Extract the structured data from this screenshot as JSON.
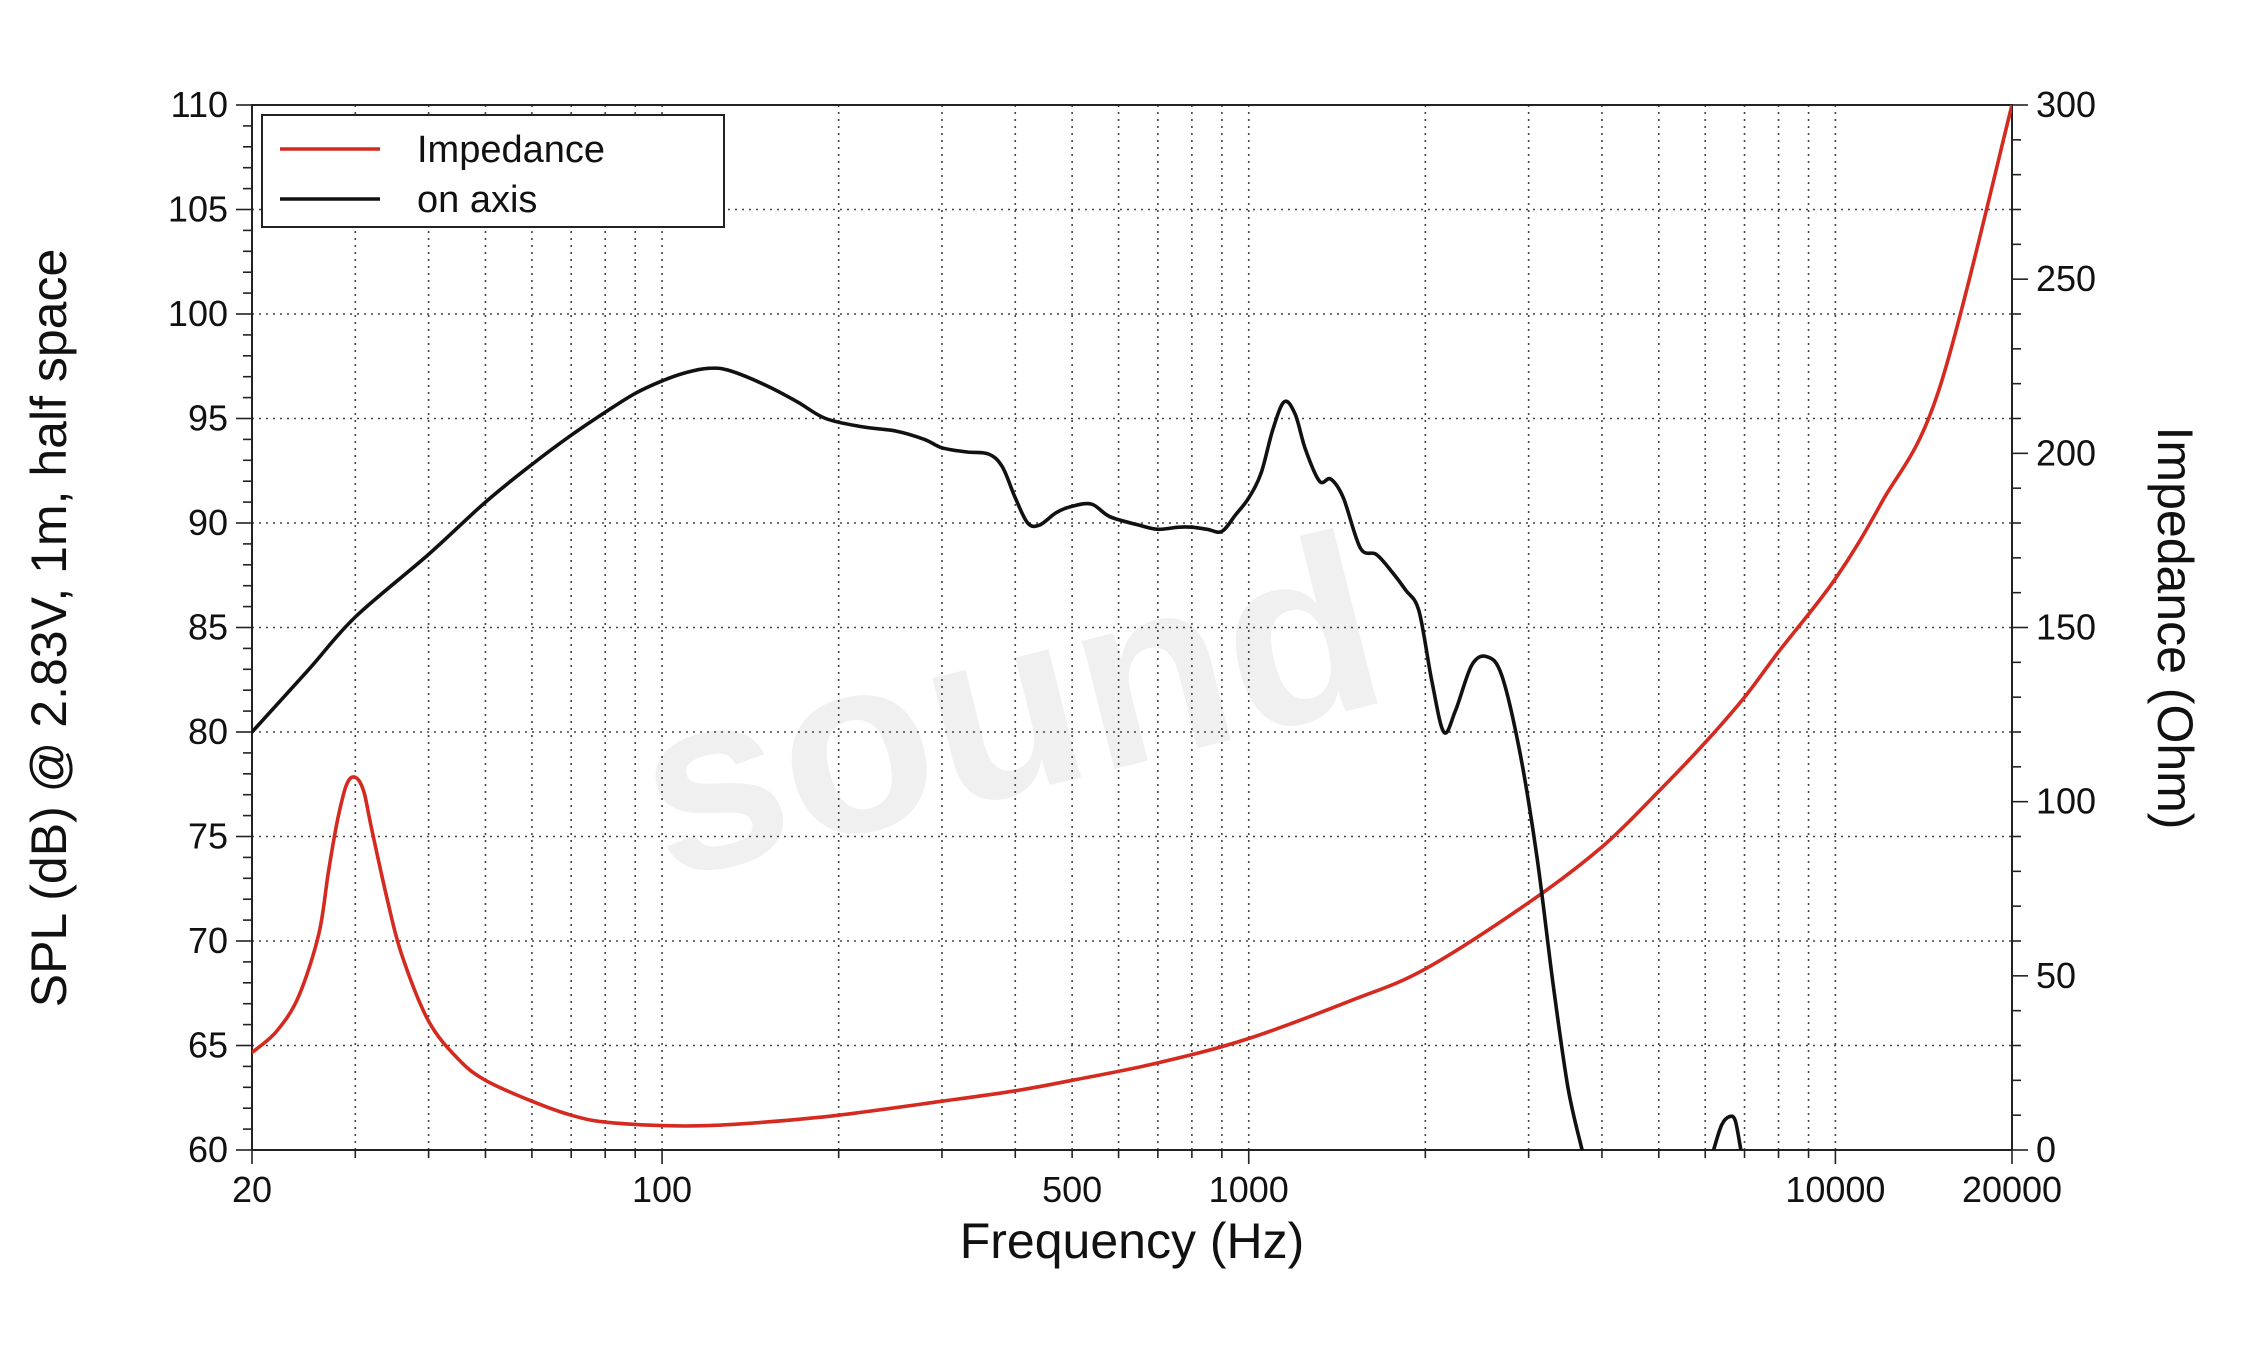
{
  "chart_data": {
    "type": "line",
    "watermark": "sound",
    "xlabel": "Frequency (Hz)",
    "ylabel_left": "SPL (dB) @ 2.83V, 1m, half space",
    "ylabel_right": "Impedance (Ohm)",
    "x_scale": "log",
    "xlim": [
      20,
      20000
    ],
    "ylim_left": [
      60,
      110
    ],
    "ylim_right": [
      0,
      300
    ],
    "x_tick_labels": [
      "20",
      "100",
      "500",
      "1000",
      "10000",
      "20000"
    ],
    "y_left_tick_labels": [
      "60",
      "65",
      "70",
      "75",
      "80",
      "85",
      "90",
      "95",
      "100",
      "105",
      "110"
    ],
    "y_right_tick_labels": [
      "0",
      "50",
      "100",
      "150",
      "200",
      "250",
      "300"
    ],
    "grid": true,
    "legend_position": "top-left",
    "series": [
      {
        "name": "Impedance",
        "axis": "right",
        "color": "#d42a20",
        "points": [
          [
            20,
            28
          ],
          [
            22,
            34
          ],
          [
            24,
            44
          ],
          [
            26,
            62
          ],
          [
            27,
            80
          ],
          [
            28,
            95
          ],
          [
            29,
            105
          ],
          [
            30,
            107
          ],
          [
            31,
            103
          ],
          [
            32,
            92
          ],
          [
            34,
            72
          ],
          [
            36,
            56
          ],
          [
            40,
            37
          ],
          [
            45,
            26
          ],
          [
            50,
            20
          ],
          [
            60,
            14
          ],
          [
            70,
            10
          ],
          [
            80,
            8
          ],
          [
            100,
            7
          ],
          [
            120,
            7
          ],
          [
            150,
            8
          ],
          [
            200,
            10
          ],
          [
            300,
            14
          ],
          [
            400,
            17
          ],
          [
            500,
            20
          ],
          [
            700,
            25
          ],
          [
            1000,
            32
          ],
          [
            1500,
            43
          ],
          [
            2000,
            52
          ],
          [
            3000,
            71
          ],
          [
            4000,
            87
          ],
          [
            5000,
            103
          ],
          [
            6000,
            117
          ],
          [
            7000,
            130
          ],
          [
            8000,
            143
          ],
          [
            10000,
            164
          ],
          [
            12000,
            186
          ],
          [
            15000,
            218
          ],
          [
            20000,
            300
          ]
        ]
      },
      {
        "name": "on axis",
        "axis": "left",
        "color": "#111111",
        "segments": [
          [
            [
              20,
              80
            ],
            [
              25,
              83
            ],
            [
              30,
              85.5
            ],
            [
              40,
              88.5
            ],
            [
              50,
              91
            ],
            [
              60,
              92.8
            ],
            [
              70,
              94.2
            ],
            [
              80,
              95.3
            ],
            [
              90,
              96.2
            ],
            [
              100,
              96.8
            ],
            [
              110,
              97.2
            ],
            [
              120,
              97.4
            ],
            [
              130,
              97.3
            ],
            [
              150,
              96.6
            ],
            [
              170,
              95.8
            ],
            [
              190,
              95
            ],
            [
              220,
              94.6
            ],
            [
              250,
              94.4
            ],
            [
              280,
              94
            ],
            [
              300,
              93.6
            ],
            [
              330,
              93.4
            ],
            [
              360,
              93.3
            ],
            [
              380,
              92.7
            ],
            [
              400,
              91.2
            ],
            [
              420,
              90
            ],
            [
              440,
              89.9
            ],
            [
              470,
              90.5
            ],
            [
              500,
              90.8
            ],
            [
              540,
              90.9
            ],
            [
              580,
              90.3
            ],
            [
              650,
              89.9
            ],
            [
              700,
              89.7
            ],
            [
              760,
              89.8
            ],
            [
              800,
              89.8
            ],
            [
              850,
              89.7
            ],
            [
              900,
              89.6
            ],
            [
              950,
              90.4
            ],
            [
              1000,
              91.2
            ],
            [
              1050,
              92.4
            ],
            [
              1100,
              94.5
            ],
            [
              1150,
              95.8
            ],
            [
              1200,
              95.2
            ],
            [
              1250,
              93.5
            ],
            [
              1320,
              92
            ],
            [
              1380,
              92.1
            ],
            [
              1450,
              91.2
            ],
            [
              1550,
              88.8
            ],
            [
              1650,
              88.5
            ],
            [
              1750,
              87.7
            ],
            [
              1850,
              86.8
            ],
            [
              1950,
              85.8
            ],
            [
              2050,
              82.5
            ],
            [
              2150,
              80
            ],
            [
              2250,
              81
            ],
            [
              2400,
              83.2
            ],
            [
              2550,
              83.6
            ],
            [
              2700,
              82.7
            ],
            [
              2900,
              79
            ],
            [
              3100,
              74
            ],
            [
              3300,
              68
            ],
            [
              3500,
              63
            ],
            [
              3700,
              60
            ]
          ],
          [
            [
              6200,
              60
            ],
            [
              6400,
              61.2
            ],
            [
              6600,
              61.6
            ],
            [
              6750,
              61.4
            ],
            [
              6900,
              60
            ]
          ]
        ]
      }
    ]
  }
}
